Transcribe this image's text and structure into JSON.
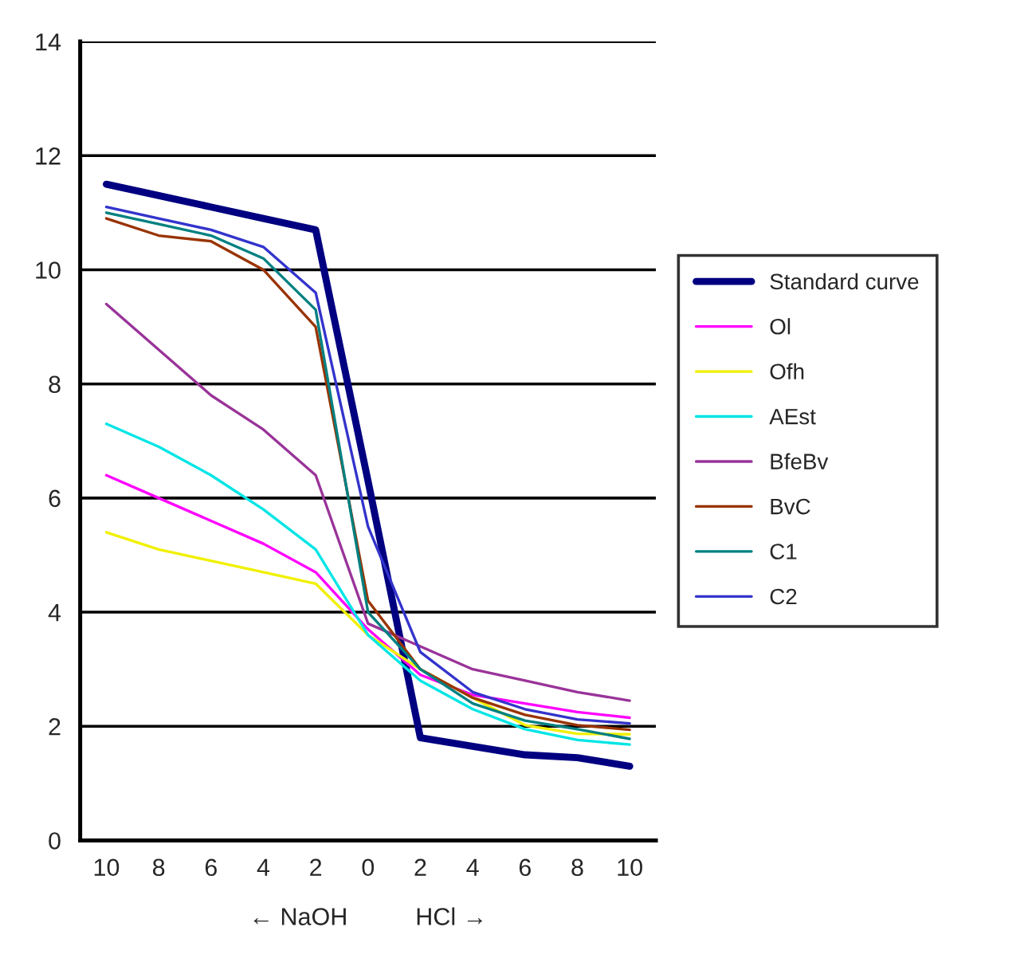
{
  "chart_data": {
    "type": "line",
    "categories": [
      "10",
      "8",
      "6",
      "4",
      "2",
      "0",
      "2",
      "4",
      "6",
      "8",
      "10"
    ],
    "xlabel": "← NaOH          HCl →",
    "ylim": [
      0,
      14
    ],
    "yticks": [
      0,
      2,
      4,
      6,
      8,
      10,
      12,
      14
    ],
    "grid": "y",
    "legend": "right",
    "marker": "none",
    "line_style": "solid",
    "series": [
      {
        "name": "Standard curve",
        "color": "#000080",
        "values": [
          11.5,
          11.3,
          11.1,
          10.9,
          10.7,
          6.3,
          1.8,
          1.65,
          1.5,
          1.45,
          1.3
        ]
      },
      {
        "name": "Ol",
        "color": "#ff00ff",
        "values": [
          6.4,
          6.0,
          5.6,
          5.2,
          4.7,
          3.7,
          2.9,
          2.55,
          2.4,
          2.25,
          2.15
        ]
      },
      {
        "name": "Ofh",
        "color": "#f0f000",
        "values": [
          5.4,
          5.1,
          4.9,
          4.7,
          4.5,
          3.6,
          3.0,
          2.5,
          2.02,
          1.87,
          1.86
        ]
      },
      {
        "name": "AEst",
        "color": "#00e5e5",
        "values": [
          7.3,
          6.9,
          6.4,
          5.8,
          5.1,
          3.6,
          2.8,
          2.3,
          1.95,
          1.76,
          1.68
        ]
      },
      {
        "name": "BfeBv",
        "color": "#993399",
        "values": [
          9.4,
          8.6,
          7.8,
          7.2,
          6.4,
          3.8,
          3.4,
          3.0,
          2.8,
          2.6,
          2.45
        ]
      },
      {
        "name": "BvC",
        "color": "#993300",
        "values": [
          10.9,
          10.6,
          10.5,
          10.0,
          9.0,
          4.2,
          3.0,
          2.5,
          2.2,
          2.02,
          1.94
        ]
      },
      {
        "name": "C1",
        "color": "#008080",
        "values": [
          11.0,
          10.8,
          10.6,
          10.2,
          9.3,
          4.0,
          3.0,
          2.4,
          2.1,
          1.95,
          1.78
        ]
      },
      {
        "name": "C2",
        "color": "#3333cc",
        "values": [
          11.1,
          10.9,
          10.7,
          10.4,
          9.6,
          5.5,
          3.3,
          2.6,
          2.3,
          2.12,
          2.05
        ]
      }
    ]
  }
}
